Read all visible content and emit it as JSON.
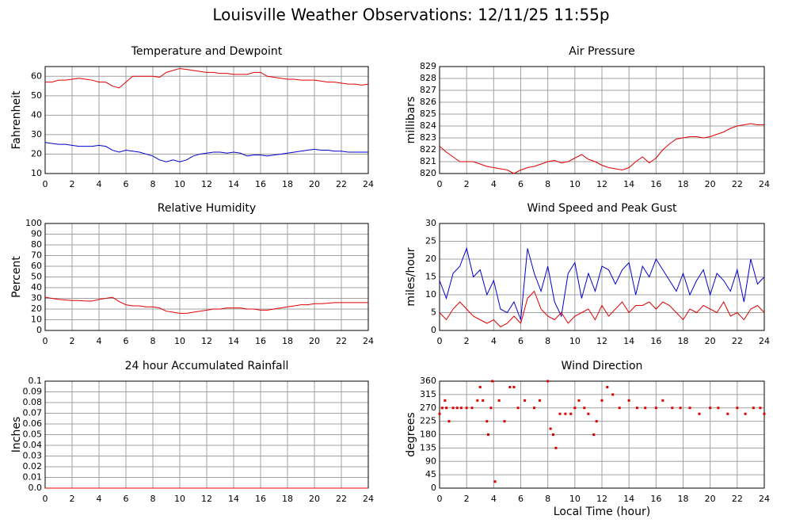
{
  "title": "Louisville Weather Observations: 12/11/25 11:55p",
  "chart_data": [
    {
      "type": "line",
      "title": "Temperature and Dewpoint",
      "ylabel": "Fahrenheit",
      "x": [
        0,
        0.5,
        1,
        1.5,
        2,
        2.5,
        3,
        3.5,
        4,
        4.5,
        5,
        5.5,
        6,
        6.5,
        7,
        7.5,
        8,
        8.5,
        9,
        9.5,
        10,
        10.5,
        11,
        11.5,
        12,
        12.5,
        13,
        13.5,
        14,
        14.5,
        15,
        15.5,
        16,
        16.5,
        17,
        17.5,
        18,
        18.5,
        19,
        19.5,
        20,
        20.5,
        21,
        21.5,
        22,
        22.5,
        23,
        23.5,
        24
      ],
      "series": [
        {
          "color": "#e00000",
          "values": [
            57,
            57,
            58,
            58,
            58.5,
            59,
            58.5,
            58,
            57,
            57,
            55,
            54,
            57,
            60,
            60,
            60,
            60,
            59.5,
            62,
            63,
            64,
            63.5,
            63,
            62.5,
            62,
            62,
            61.5,
            61.5,
            61,
            61,
            61,
            62,
            62,
            60,
            59.5,
            59,
            58.5,
            58.5,
            58,
            58,
            58,
            57.5,
            57,
            57,
            56.5,
            56,
            56,
            55.5,
            56
          ]
        },
        {
          "color": "#0000d0",
          "values": [
            26,
            25.5,
            25,
            25,
            24.5,
            24,
            24,
            24,
            24.5,
            24,
            22,
            21,
            22,
            21.5,
            21,
            20,
            19,
            17,
            16,
            17,
            16,
            17,
            19,
            20,
            20.5,
            21,
            21,
            20.5,
            21,
            20.5,
            19,
            19.5,
            19.5,
            19,
            19.5,
            20,
            20.5,
            21,
            21.5,
            22,
            22.5,
            22,
            22,
            21.5,
            21.5,
            21,
            21,
            21,
            21
          ]
        }
      ],
      "xlim": [
        0,
        24
      ],
      "xticks": [
        0,
        2,
        4,
        6,
        8,
        10,
        12,
        14,
        16,
        18,
        20,
        22,
        24
      ],
      "ylim": [
        10,
        65
      ],
      "yticks": [
        10,
        20,
        30,
        40,
        50,
        60
      ],
      "grid": true
    },
    {
      "type": "line",
      "title": "Air Pressure",
      "ylabel": "millibars",
      "x": [
        0,
        0.5,
        1,
        1.5,
        2,
        2.5,
        3,
        3.5,
        4,
        4.5,
        5,
        5.5,
        6,
        6.5,
        7,
        7.5,
        8,
        8.5,
        9,
        9.5,
        10,
        10.5,
        11,
        11.5,
        12,
        12.5,
        13,
        13.5,
        14,
        14.5,
        15,
        15.5,
        16,
        16.5,
        17,
        17.5,
        18,
        18.5,
        19,
        19.5,
        20,
        20.5,
        21,
        21.5,
        22,
        22.5,
        23,
        23.5,
        24
      ],
      "series": [
        {
          "color": "#e00000",
          "values": [
            822.3,
            821.8,
            821.4,
            821,
            821,
            821,
            820.8,
            820.6,
            820.5,
            820.4,
            820.3,
            820,
            820.3,
            820.5,
            820.6,
            820.8,
            821,
            821.1,
            820.9,
            821,
            821.3,
            821.6,
            821.2,
            821,
            820.7,
            820.5,
            820.4,
            820.3,
            820.5,
            821,
            821.4,
            820.9,
            821.3,
            822,
            822.5,
            822.9,
            823,
            823.1,
            823.1,
            823,
            823.1,
            823.3,
            823.5,
            823.8,
            824,
            824.1,
            824.2,
            824.1,
            824.1
          ]
        }
      ],
      "xlim": [
        0,
        24
      ],
      "xticks": [
        0,
        2,
        4,
        6,
        8,
        10,
        12,
        14,
        16,
        18,
        20,
        22,
        24
      ],
      "ylim": [
        820,
        829
      ],
      "yticks": [
        820,
        821,
        822,
        823,
        824,
        825,
        826,
        827,
        828,
        829
      ],
      "grid": true
    },
    {
      "type": "line",
      "title": "Relative Humidity",
      "ylabel": "Percent",
      "x": [
        0,
        0.5,
        1,
        1.5,
        2,
        2.5,
        3,
        3.5,
        4,
        4.5,
        5,
        5.5,
        6,
        6.5,
        7,
        7.5,
        8,
        8.5,
        9,
        9.5,
        10,
        10.5,
        11,
        11.5,
        12,
        12.5,
        13,
        13.5,
        14,
        14.5,
        15,
        15.5,
        16,
        16.5,
        17,
        17.5,
        18,
        18.5,
        19,
        19.5,
        20,
        20.5,
        21,
        21.5,
        22,
        22.5,
        23,
        23.5,
        24
      ],
      "series": [
        {
          "color": "#e00000",
          "values": [
            31,
            30,
            29,
            28.5,
            28,
            28,
            27.5,
            27.5,
            29,
            30,
            31,
            27,
            24,
            23,
            23,
            22,
            22,
            21,
            18,
            17,
            16,
            16,
            17,
            18,
            19,
            20,
            20,
            21,
            21,
            21,
            20,
            20,
            19,
            19,
            20,
            21,
            22,
            23,
            24,
            24,
            25,
            25,
            25.5,
            26,
            26,
            26,
            26,
            26,
            26
          ]
        }
      ],
      "xlim": [
        0,
        24
      ],
      "xticks": [
        0,
        2,
        4,
        6,
        8,
        10,
        12,
        14,
        16,
        18,
        20,
        22,
        24
      ],
      "ylim": [
        0,
        100
      ],
      "yticks": [
        0,
        10,
        20,
        30,
        40,
        50,
        60,
        70,
        80,
        90,
        100
      ],
      "grid": true
    },
    {
      "type": "line",
      "title": "Wind Speed and Peak Gust",
      "ylabel": "miles/hour",
      "x": [
        0,
        0.5,
        1,
        1.5,
        2,
        2.5,
        3,
        3.5,
        4,
        4.5,
        5,
        5.5,
        6,
        6.5,
        7,
        7.5,
        8,
        8.5,
        9,
        9.5,
        10,
        10.5,
        11,
        11.5,
        12,
        12.5,
        13,
        13.5,
        14,
        14.5,
        15,
        15.5,
        16,
        16.5,
        17,
        17.5,
        18,
        18.5,
        19,
        19.5,
        20,
        20.5,
        21,
        21.5,
        22,
        22.5,
        23,
        23.5,
        24
      ],
      "series": [
        {
          "color": "#0000d0",
          "values": [
            14,
            9,
            16,
            18,
            23,
            15,
            17,
            10,
            14,
            6,
            5,
            8,
            3,
            23,
            16,
            11,
            18,
            8,
            4,
            16,
            19,
            9,
            16,
            11,
            18,
            17,
            13,
            17,
            19,
            10,
            18,
            15,
            20,
            17,
            14,
            11,
            16,
            10,
            14,
            17,
            10,
            16,
            14,
            11,
            17,
            8,
            20,
            13,
            15
          ]
        },
        {
          "color": "#e00000",
          "values": [
            5,
            3,
            6,
            8,
            6,
            4,
            3,
            2,
            3,
            1,
            2,
            4,
            2,
            9,
            11,
            6,
            4,
            3,
            5,
            2,
            4,
            5,
            6,
            3,
            7,
            4,
            6,
            8,
            5,
            7,
            7,
            8,
            6,
            8,
            7,
            5,
            3,
            6,
            5,
            7,
            6,
            5,
            8,
            4,
            5,
            3,
            6,
            7,
            5
          ]
        }
      ],
      "xlim": [
        0,
        24
      ],
      "xticks": [
        0,
        2,
        4,
        6,
        8,
        10,
        12,
        14,
        16,
        18,
        20,
        22,
        24
      ],
      "ylim": [
        0,
        30
      ],
      "yticks": [
        0,
        5,
        10,
        15,
        20,
        25,
        30
      ],
      "grid": true
    },
    {
      "type": "line",
      "title": "24 hour Accumulated Rainfall",
      "ylabel": "Inches",
      "x": [
        0,
        24
      ],
      "series": [
        {
          "color": "#e00000",
          "values": [
            0,
            0
          ]
        }
      ],
      "xlim": [
        0,
        24
      ],
      "xticks": [
        0,
        2,
        4,
        6,
        8,
        10,
        12,
        14,
        16,
        18,
        20,
        22,
        24
      ],
      "ylim": [
        0,
        0.1
      ],
      "yticks": [
        {
          "value": 0,
          "label": "0.0"
        },
        0.01,
        0.02,
        0.03,
        0.04,
        0.05,
        0.06,
        0.07,
        0.08,
        0.09,
        0.1
      ],
      "grid": true
    },
    {
      "type": "scatter",
      "title": "Wind Direction",
      "ylabel": "degrees",
      "xlabel": "Local Time (hour)",
      "x": [
        0,
        0.2,
        0.4,
        0.5,
        0.7,
        1,
        1.3,
        1.6,
        2,
        2.4,
        2.8,
        3,
        3.2,
        3.5,
        3.6,
        3.8,
        3.9,
        4.1,
        4.4,
        4.8,
        5.2,
        5.5,
        5.8,
        6.3,
        7,
        7.4,
        8,
        8.2,
        8.4,
        8.6,
        8.9,
        9.3,
        9.7,
        10,
        10.3,
        10.7,
        11,
        11.4,
        11.6,
        12,
        12.4,
        12.8,
        13.3,
        14,
        14.6,
        15.2,
        16,
        16.5,
        17.2,
        17.8,
        18.5,
        19.2,
        20,
        20.6,
        21.3,
        22,
        22.6,
        23.2,
        23.7,
        24
      ],
      "series": [
        {
          "color": "#e00000",
          "values": [
            250,
            270,
            295,
            270,
            225,
            270,
            270,
            270,
            270,
            270,
            295,
            340,
            295,
            225,
            180,
            270,
            360,
            22,
            295,
            225,
            340,
            340,
            270,
            295,
            270,
            295,
            360,
            200,
            180,
            135,
            250,
            250,
            250,
            270,
            295,
            270,
            250,
            180,
            225,
            295,
            340,
            315,
            270,
            295,
            270,
            270,
            270,
            295,
            270,
            270,
            270,
            250,
            270,
            270,
            250,
            270,
            250,
            270,
            270,
            250
          ]
        }
      ],
      "xlim": [
        0,
        24
      ],
      "xticks": [
        0,
        2,
        4,
        6,
        8,
        10,
        12,
        14,
        16,
        18,
        20,
        22,
        24
      ],
      "ylim": [
        0,
        360
      ],
      "yticks": [
        0,
        45,
        90,
        135,
        180,
        225,
        270,
        315,
        360
      ],
      "grid": true
    }
  ]
}
